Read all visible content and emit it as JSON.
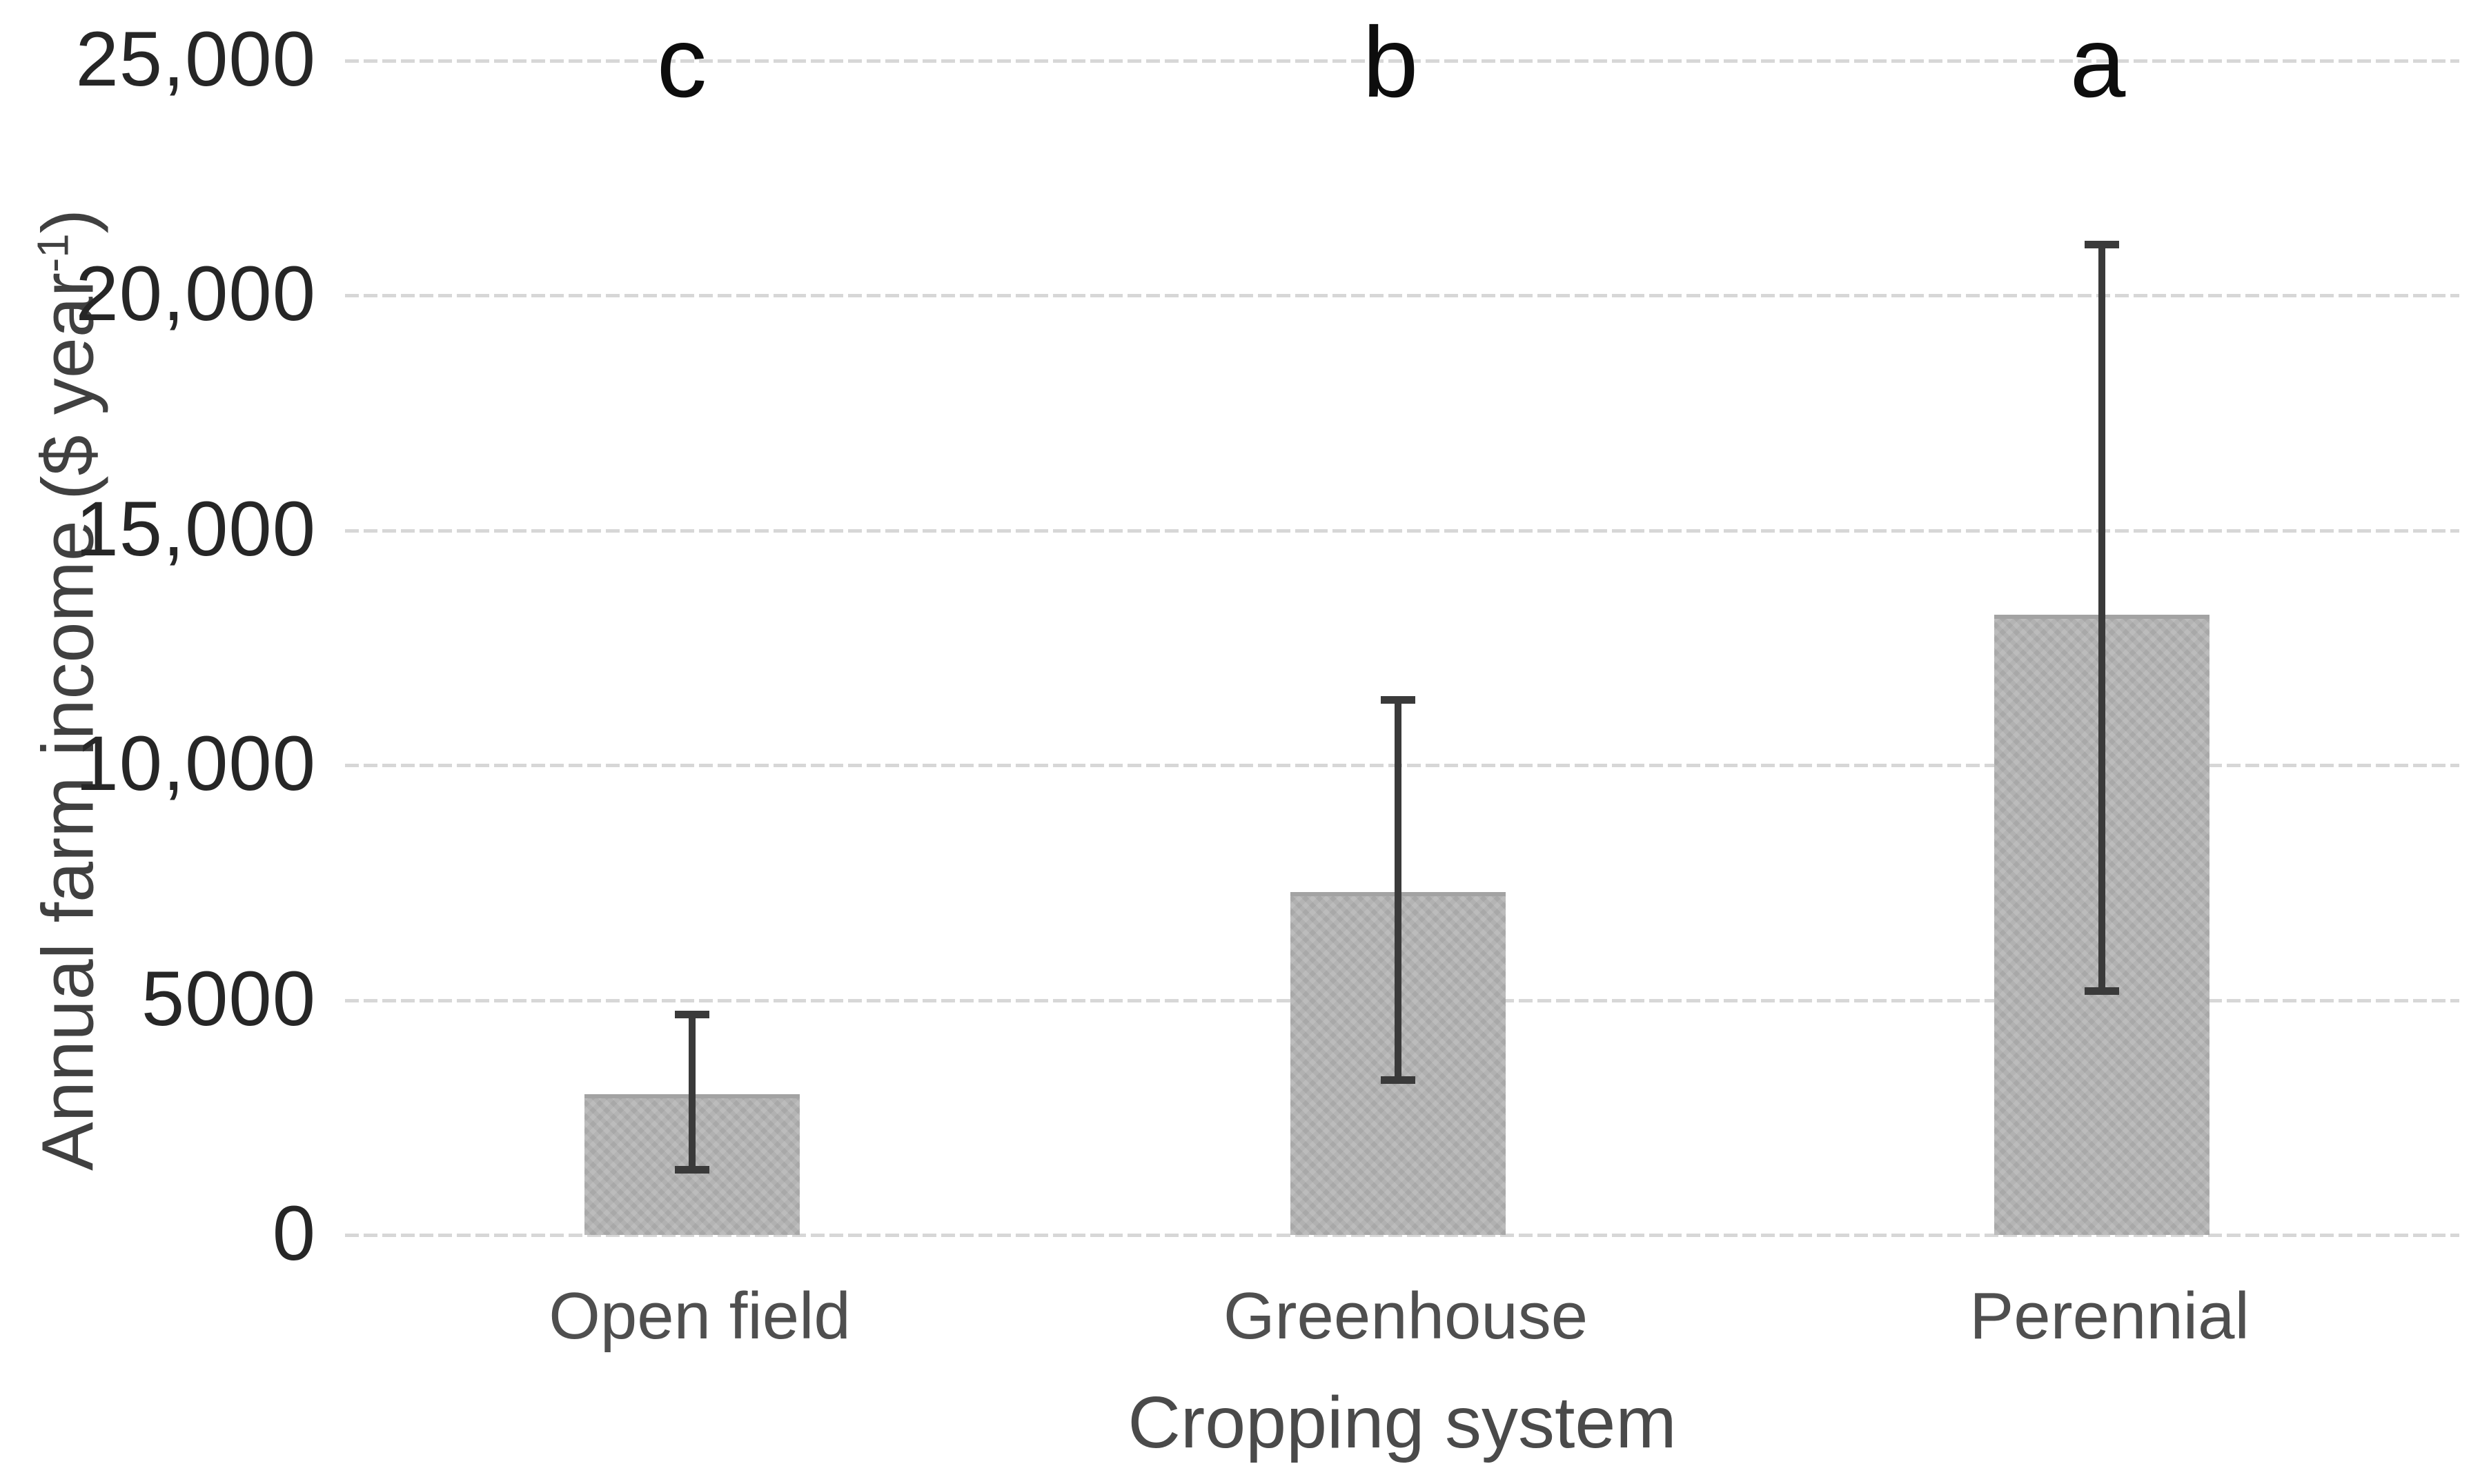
{
  "chart_data": {
    "type": "bar",
    "title": "",
    "categories": [
      "Open field",
      "Greenhouse",
      "Perennial"
    ],
    "series": [
      {
        "name": "Annual farm income",
        "values": [
          3000,
          7300,
          13200
        ]
      }
    ],
    "error_bars": {
      "low": [
        1400,
        3300,
        5200
      ],
      "high": [
        4700,
        11400,
        21100
      ]
    },
    "significance_letters": [
      "c",
      "b",
      "a"
    ],
    "xlabel": "Cropping system",
    "ylabel": "Annual farm income ($ year-1)",
    "ylabel_parts": {
      "base": "Annual farm income ($ year",
      "superscript": "-1",
      "suffix": ")"
    },
    "yticks": [
      0,
      5000,
      10000,
      15000,
      20000,
      25000
    ],
    "ytick_labels": [
      "0",
      "5000",
      "10,000",
      "15,000",
      "20,000",
      "25,000"
    ],
    "ylim": [
      0,
      25000
    ],
    "grid": true,
    "legend": null,
    "colors": {
      "bar_fill": "#b1b1b1",
      "bar_edge": "#a3a3a3",
      "error_bar": "#3a3a3a",
      "gridline": "#d7d7d7",
      "tick_label": "#262626",
      "category_label": "#4f4f4f",
      "axis_title": "#454545",
      "letter": "#0d0d0d",
      "background": "#ffffff"
    }
  }
}
